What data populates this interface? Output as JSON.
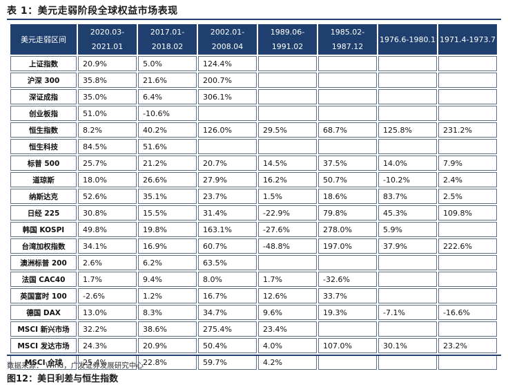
{
  "table_title": "表 1：美元走弱阶段全球权益市场表现",
  "header": [
    "美元走弱区间",
    "2020.03-2021.01",
    "2017.01-2018.02",
    "2002.01-2008.04",
    "1989.06-1991.02",
    "1985.02-1987.12",
    "1976.6-1980.1",
    "1971.4-1973.7"
  ],
  "rows": [
    {
      "name": "上证指数",
      "values": [
        "20.9%",
        "5.0%",
        "124.4%",
        "",
        "",
        "",
        ""
      ]
    },
    {
      "name": "沪深 300",
      "values": [
        "35.8%",
        "21.6%",
        "200.7%",
        "",
        "",
        "",
        ""
      ]
    },
    {
      "name": "深证成指",
      "values": [
        "35.0%",
        "6.4%",
        "306.1%",
        "",
        "",
        "",
        ""
      ]
    },
    {
      "name": "创业板指",
      "values": [
        "51.0%",
        "-10.6%",
        "",
        "",
        "",
        "",
        ""
      ]
    },
    {
      "name": "恒生指数",
      "values": [
        "8.2%",
        "40.2%",
        "126.0%",
        "29.5%",
        "68.7%",
        "125.8%",
        "231.2%"
      ]
    },
    {
      "name": "恒生科技",
      "values": [
        "84.5%",
        "51.6%",
        "",
        "",
        "",
        "",
        ""
      ]
    },
    {
      "name": "标普 500",
      "values": [
        "25.7%",
        "21.2%",
        "20.7%",
        "14.5%",
        "37.5%",
        "14.0%",
        "7.9%"
      ]
    },
    {
      "name": "道琼斯",
      "values": [
        "18.0%",
        "26.6%",
        "27.9%",
        "16.2%",
        "50.7%",
        "-10.2%",
        "2.4%"
      ]
    },
    {
      "name": "纳斯达克",
      "values": [
        "52.6%",
        "35.1%",
        "23.7%",
        "1.5%",
        "18.6%",
        "83.7%",
        "2.5%"
      ]
    },
    {
      "name": "日经 225",
      "values": [
        "30.8%",
        "15.5%",
        "31.4%",
        "-22.9%",
        "79.8%",
        "45.3%",
        "109.8%"
      ]
    },
    {
      "name": "韩国 KOSPI",
      "values": [
        "49.8%",
        "19.8%",
        "163.1%",
        "-27.6%",
        "278.0%",
        "5.9%",
        ""
      ]
    },
    {
      "name": "台湾加权指数",
      "values": [
        "34.1%",
        "16.9%",
        "60.7%",
        "-48.8%",
        "197.0%",
        "37.9%",
        "222.6%"
      ]
    },
    {
      "name": "澳洲标普 200",
      "values": [
        "2.6%",
        "6.2%",
        "63.5%",
        "",
        "",
        "",
        ""
      ]
    },
    {
      "name": "法国 CAC40",
      "values": [
        "1.7%",
        "9.4%",
        "8.0%",
        "1.7%",
        "-32.6%",
        "",
        ""
      ]
    },
    {
      "name": "英国富时 100",
      "values": [
        "-2.6%",
        "1.2%",
        "16.7%",
        "12.6%",
        "33.7%",
        "",
        ""
      ]
    },
    {
      "name": "德国 DAX",
      "values": [
        "13.0%",
        "8.3%",
        "34.7%",
        "9.6%",
        "19.3%",
        "-7.1%",
        "-16.6%"
      ]
    },
    {
      "name": "MSCI 新兴市场",
      "values": [
        "32.2%",
        "38.6%",
        "275.4%",
        "23.4%",
        "",
        "",
        ""
      ]
    },
    {
      "name": "MSCI 发达市场",
      "values": [
        "24.3%",
        "20.9%",
        "50.4%",
        "4.0%",
        "107.0%",
        "30.1%",
        "23.2%"
      ]
    },
    {
      "name": "MSCI 全球",
      "values": [
        "25.4%",
        "22.8%",
        "59.7%",
        "4.2%",
        "",
        "",
        ""
      ]
    }
  ],
  "source": "数据来源： Wind，广发证券发展研究中心",
  "next_figure_title": "图12：美日利差与恒生指数"
}
